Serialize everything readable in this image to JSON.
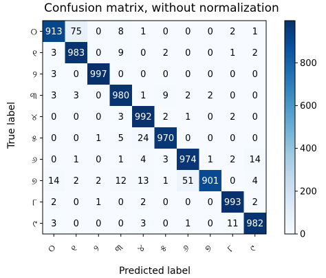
{
  "chart_data": {
    "type": "heatmap",
    "title": "Confusion matrix, without normalization",
    "xlabel": "Predicted label",
    "ylabel": "True label",
    "row_labels": [
      "୦",
      "୧",
      "୨",
      "୩",
      "୪",
      "୫",
      "୬",
      "୭",
      "୮",
      "୯"
    ],
    "col_labels": [
      "୦",
      "୧",
      "୨",
      "୩",
      "୪",
      "୫",
      "୬",
      "୭",
      "୮",
      "୯"
    ],
    "values": [
      [
        913,
        75,
        0,
        8,
        1,
        0,
        0,
        0,
        2,
        1
      ],
      [
        3,
        983,
        0,
        9,
        0,
        2,
        0,
        0,
        1,
        2
      ],
      [
        3,
        0,
        997,
        0,
        0,
        0,
        0,
        0,
        0,
        0
      ],
      [
        3,
        3,
        0,
        980,
        1,
        9,
        2,
        2,
        0,
        0
      ],
      [
        0,
        0,
        0,
        3,
        992,
        2,
        1,
        0,
        2,
        0
      ],
      [
        0,
        0,
        1,
        5,
        24,
        970,
        0,
        0,
        0,
        0
      ],
      [
        0,
        1,
        0,
        1,
        4,
        3,
        974,
        1,
        2,
        14
      ],
      [
        14,
        2,
        2,
        12,
        13,
        1,
        51,
        901,
        0,
        4
      ],
      [
        2,
        0,
        1,
        0,
        2,
        0,
        0,
        0,
        993,
        2
      ],
      [
        3,
        0,
        0,
        0,
        3,
        0,
        1,
        0,
        11,
        982
      ]
    ],
    "colormap": "Blues",
    "vmin": 0,
    "vmax": 997,
    "colorbar_ticks": [
      0,
      200,
      400,
      600,
      800
    ]
  }
}
